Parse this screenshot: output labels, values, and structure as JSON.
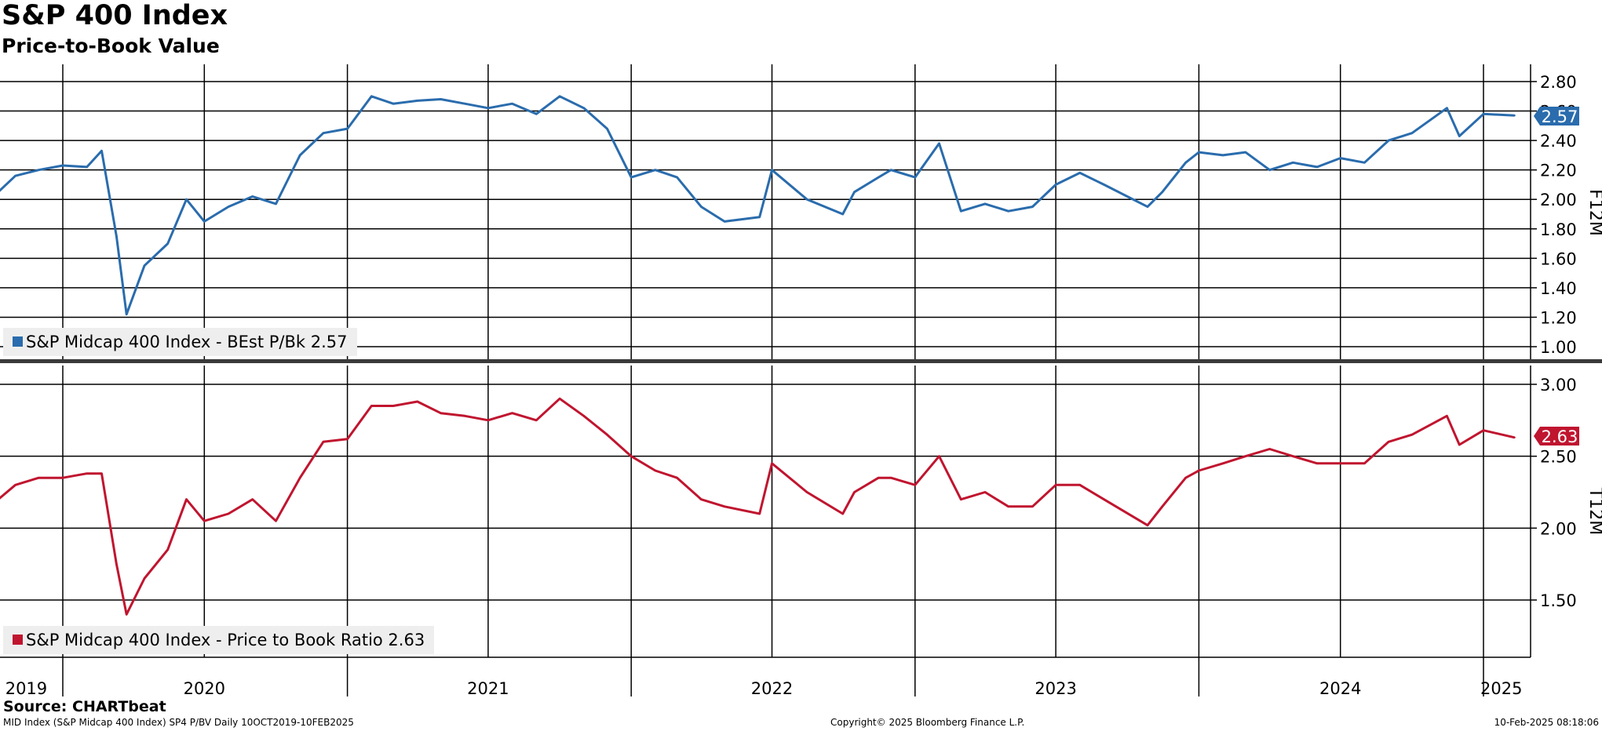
{
  "header": {
    "title": "S&P 400 Index",
    "subtitle": "Price-to-Book Value"
  },
  "footer": {
    "source": "Source: CHARTbeat",
    "ticker_info": "MID Index (S&P Midcap 400 Index) SP4 P/BV  Daily 10OCT2019-10FEB2025",
    "copyright": "Copyright© 2025 Bloomberg Finance L.P.",
    "timestamp": "10-Feb-2025 08:18:06"
  },
  "colors": {
    "top_series": "#2a6cad",
    "bottom_series": "#c0152f",
    "divider": "#3a3a3a",
    "grid": "#000000",
    "legend_bg": "#eeeeee"
  },
  "chart_data": [
    {
      "type": "line",
      "panel": "top",
      "axis_label": "F12M",
      "ylim": [
        0.95,
        2.85
      ],
      "yticks": [
        "1.00",
        "1.20",
        "1.40",
        "1.60",
        "1.80",
        "2.00",
        "2.20",
        "2.40",
        "2.60",
        "2.80"
      ],
      "grid": true,
      "legend_placement": "bottom-left",
      "series": [
        {
          "name": "S&P Midcap 400 Index - BEst P/Bk",
          "legend_label": "S&P Midcap 400 Index - BEst P/Bk 2.57",
          "last_value": "2.57",
          "x": [
            "2019-10-10",
            "2019-11-01",
            "2019-12-01",
            "2020-01-01",
            "2020-02-01",
            "2020-02-20",
            "2020-03-10",
            "2020-03-23",
            "2020-04-15",
            "2020-05-15",
            "2020-06-08",
            "2020-07-01",
            "2020-08-01",
            "2020-09-01",
            "2020-10-01",
            "2020-11-01",
            "2020-12-01",
            "2021-01-01",
            "2021-02-01",
            "2021-03-01",
            "2021-04-01",
            "2021-05-01",
            "2021-06-01",
            "2021-07-01",
            "2021-08-01",
            "2021-09-01",
            "2021-10-01",
            "2021-11-01",
            "2021-12-01",
            "2022-01-01",
            "2022-02-01",
            "2022-03-01",
            "2022-04-01",
            "2022-05-01",
            "2022-06-15",
            "2022-07-01",
            "2022-08-15",
            "2022-09-30",
            "2022-10-15",
            "2022-11-15",
            "2022-12-01",
            "2023-01-01",
            "2023-02-01",
            "2023-03-01",
            "2023-04-01",
            "2023-05-01",
            "2023-06-01",
            "2023-07-01",
            "2023-08-01",
            "2023-09-01",
            "2023-10-27",
            "2023-11-15",
            "2023-12-15",
            "2024-01-01",
            "2024-02-01",
            "2024-03-01",
            "2024-04-01",
            "2024-05-01",
            "2024-06-01",
            "2024-07-01",
            "2024-08-01",
            "2024-09-01",
            "2024-10-01",
            "2024-11-15",
            "2024-12-01",
            "2025-01-01",
            "2025-02-10"
          ],
          "values": [
            2.05,
            2.16,
            2.2,
            2.23,
            2.22,
            2.33,
            1.75,
            1.22,
            1.55,
            1.7,
            2.0,
            1.85,
            1.95,
            2.02,
            1.97,
            2.3,
            2.45,
            2.48,
            2.7,
            2.65,
            2.67,
            2.68,
            2.65,
            2.62,
            2.65,
            2.58,
            2.7,
            2.62,
            2.48,
            2.15,
            2.2,
            2.15,
            1.95,
            1.85,
            1.88,
            2.2,
            2.0,
            1.9,
            2.05,
            2.15,
            2.2,
            2.15,
            2.38,
            1.92,
            1.97,
            1.92,
            1.95,
            2.1,
            2.18,
            2.1,
            1.95,
            2.05,
            2.25,
            2.32,
            2.3,
            2.32,
            2.2,
            2.25,
            2.22,
            2.28,
            2.25,
            2.4,
            2.45,
            2.62,
            2.43,
            2.58,
            2.57
          ]
        }
      ]
    },
    {
      "type": "line",
      "panel": "bottom",
      "axis_label": "T12M",
      "ylim": [
        1.1,
        3.1
      ],
      "yticks": [
        "1.50",
        "2.00",
        "2.50",
        "3.00"
      ],
      "grid": true,
      "legend_placement": "bottom-left",
      "x_axis_labels": [
        "2019",
        "2020",
        "2021",
        "2022",
        "2023",
        "2024",
        "2025"
      ],
      "series": [
        {
          "name": "S&P Midcap 400 Index - Price to Book Ratio",
          "legend_label": "S&P Midcap 400 Index - Price to Book Ratio 2.63",
          "last_value": "2.63",
          "x": [
            "2019-10-10",
            "2019-11-01",
            "2019-12-01",
            "2020-01-01",
            "2020-02-01",
            "2020-02-20",
            "2020-03-10",
            "2020-03-23",
            "2020-04-15",
            "2020-05-15",
            "2020-06-08",
            "2020-07-01",
            "2020-08-01",
            "2020-09-01",
            "2020-10-01",
            "2020-11-01",
            "2020-12-01",
            "2021-01-01",
            "2021-02-01",
            "2021-03-01",
            "2021-04-01",
            "2021-05-01",
            "2021-06-01",
            "2021-07-01",
            "2021-08-01",
            "2021-09-01",
            "2021-10-01",
            "2021-11-01",
            "2021-12-01",
            "2022-01-01",
            "2022-02-01",
            "2022-03-01",
            "2022-04-01",
            "2022-05-01",
            "2022-06-15",
            "2022-07-01",
            "2022-08-15",
            "2022-09-30",
            "2022-10-15",
            "2022-11-15",
            "2022-12-01",
            "2023-01-01",
            "2023-02-01",
            "2023-03-01",
            "2023-04-01",
            "2023-05-01",
            "2023-06-01",
            "2023-07-01",
            "2023-08-01",
            "2023-09-01",
            "2023-10-27",
            "2023-11-15",
            "2023-12-15",
            "2024-01-01",
            "2024-02-01",
            "2024-03-01",
            "2024-04-01",
            "2024-05-01",
            "2024-06-01",
            "2024-07-01",
            "2024-08-01",
            "2024-09-01",
            "2024-10-01",
            "2024-11-15",
            "2024-12-01",
            "2025-01-01",
            "2025-02-10"
          ],
          "values": [
            2.2,
            2.3,
            2.35,
            2.35,
            2.38,
            2.38,
            1.75,
            1.4,
            1.65,
            1.85,
            2.2,
            2.05,
            2.1,
            2.2,
            2.05,
            2.35,
            2.6,
            2.62,
            2.85,
            2.85,
            2.88,
            2.8,
            2.78,
            2.75,
            2.8,
            2.75,
            2.9,
            2.78,
            2.65,
            2.5,
            2.4,
            2.35,
            2.2,
            2.15,
            2.1,
            2.45,
            2.25,
            2.1,
            2.25,
            2.35,
            2.35,
            2.3,
            2.5,
            2.2,
            2.25,
            2.15,
            2.15,
            2.3,
            2.3,
            2.2,
            2.02,
            2.15,
            2.35,
            2.4,
            2.45,
            2.5,
            2.55,
            2.5,
            2.45,
            2.45,
            2.45,
            2.6,
            2.65,
            2.78,
            2.58,
            2.68,
            2.63
          ]
        }
      ]
    }
  ]
}
